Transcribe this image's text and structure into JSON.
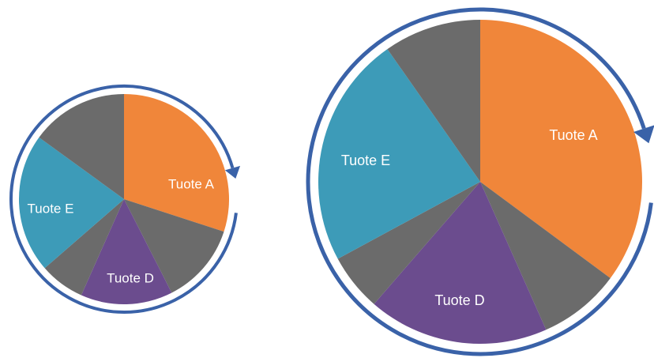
{
  "pies": [
    {
      "slice_labels": [
        "Tuote A",
        "Tuote D",
        "Tuote E"
      ]
    },
    {
      "slice_labels": [
        "Tuote A",
        "Tuote D",
        "Tuote E"
      ]
    }
  ]
}
